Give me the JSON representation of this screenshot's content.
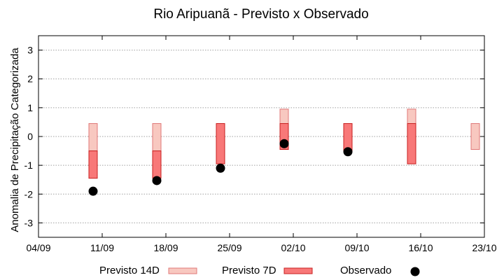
{
  "chart_data": {
    "type": "bar",
    "title": "Rio Aripuanã - Previsto x Observado",
    "ylabel": "Anomalia de Precipitação Categorizada",
    "xlabel": "",
    "x_ticks": [
      "04/09",
      "11/09",
      "18/09",
      "25/09",
      "02/10",
      "09/10",
      "16/10",
      "23/10"
    ],
    "x_range": [
      "04/09",
      "23/10"
    ],
    "ylim": [
      -3.5,
      3.5
    ],
    "y_ticks": [
      -3,
      -2,
      -1,
      0,
      1,
      2,
      3
    ],
    "grid": true,
    "legend_position": "bottom",
    "colors": {
      "previsto_14d_fill": "#f8c8c0",
      "previsto_14d_edge": "#e07878",
      "previsto_7d_fill": "#f87878",
      "previsto_7d_edge": "#c82020",
      "observado": "#000000",
      "grid": "#a0a0a0"
    },
    "series": [
      {
        "name": "Previsto 14D",
        "kind": "range-bar",
        "points": [
          {
            "x": "10/09",
            "low": -0.5,
            "high": 0.45
          },
          {
            "x": "17/09",
            "low": -0.5,
            "high": 0.45
          },
          {
            "x": "24/09",
            "low": -0.45,
            "high": 0.45
          },
          {
            "x": "01/10",
            "low": -0.45,
            "high": 0.95
          },
          {
            "x": "15/10",
            "low": -0.45,
            "high": 0.95
          },
          {
            "x": "22/10",
            "low": -0.45,
            "high": 0.45
          }
        ]
      },
      {
        "name": "Previsto 7D",
        "kind": "range-bar",
        "points": [
          {
            "x": "10/09",
            "low": -1.45,
            "high": -0.5
          },
          {
            "x": "17/09",
            "low": -1.45,
            "high": -0.5
          },
          {
            "x": "24/09",
            "low": -0.95,
            "high": 0.45
          },
          {
            "x": "01/10",
            "low": -0.45,
            "high": 0.45
          },
          {
            "x": "08/10",
            "low": -0.5,
            "high": 0.45
          },
          {
            "x": "15/10",
            "low": -0.95,
            "high": 0.45
          }
        ]
      },
      {
        "name": "Observado",
        "kind": "scatter",
        "points": [
          {
            "x": "10/09",
            "y": -1.9
          },
          {
            "x": "17/09",
            "y": -1.53
          },
          {
            "x": "24/09",
            "y": -1.1
          },
          {
            "x": "01/10",
            "y": -0.25
          },
          {
            "x": "08/10",
            "y": -0.53
          }
        ]
      }
    ]
  }
}
